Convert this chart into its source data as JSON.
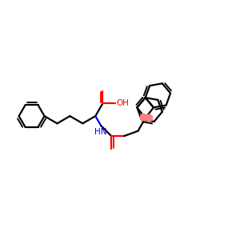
{
  "background_color": "#ffffff",
  "bond_color": "#000000",
  "oxygen_color": "#ff0000",
  "nitrogen_color": "#0000ff",
  "line_width": 1.6,
  "figsize": [
    3.0,
    3.0
  ],
  "dpi": 100,
  "xlim": [
    0,
    12
  ],
  "ylim": [
    0,
    12
  ]
}
